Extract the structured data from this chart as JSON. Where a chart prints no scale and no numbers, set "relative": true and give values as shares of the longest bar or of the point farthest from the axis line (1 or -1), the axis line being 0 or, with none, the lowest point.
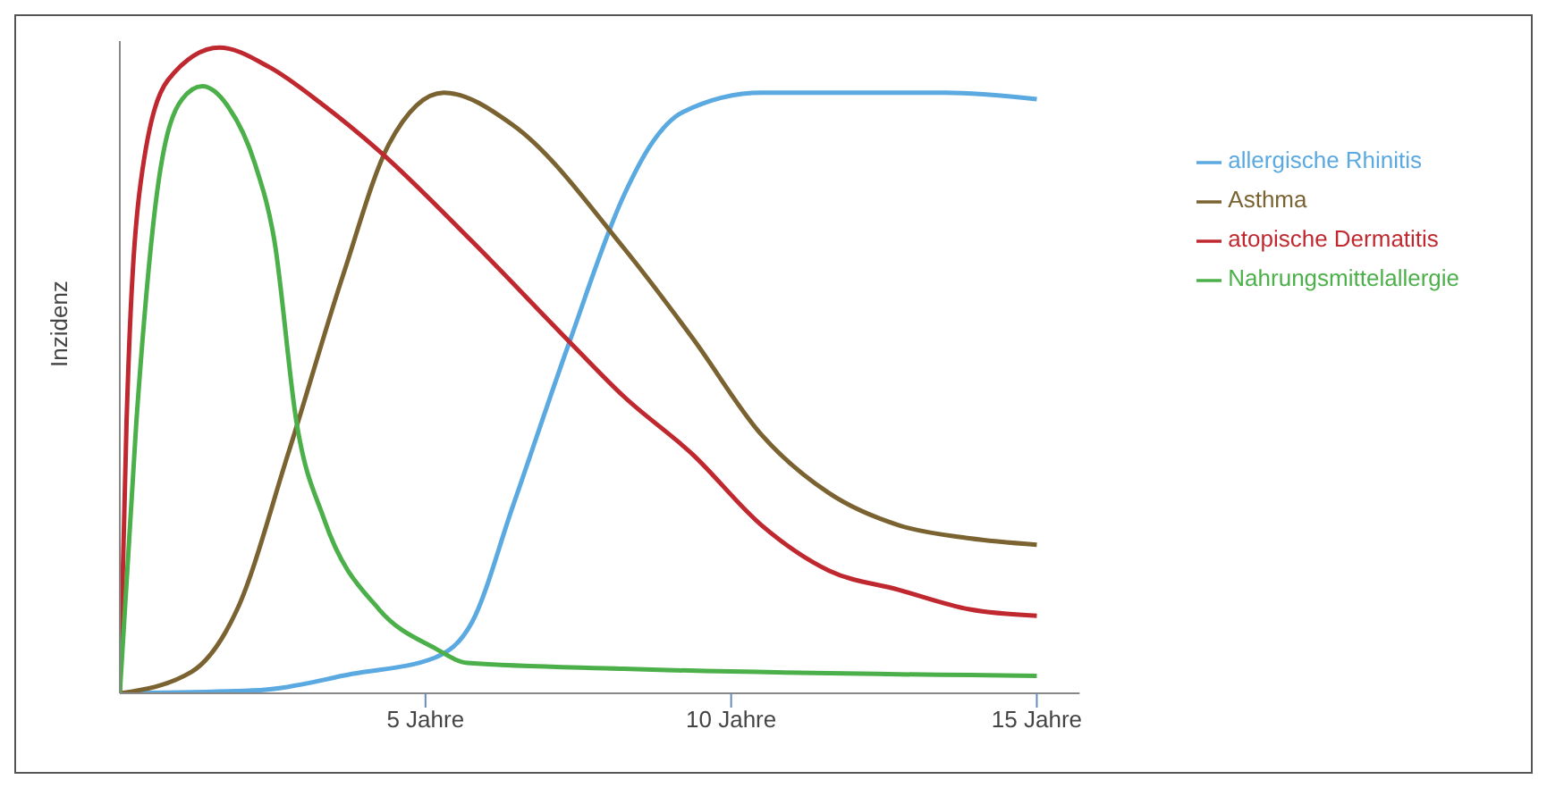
{
  "chart_data": {
    "type": "line",
    "relative": true,
    "ylabel": "Inzidenz",
    "xlim": [
      0,
      15.7
    ],
    "xticks": [
      {
        "value": 5,
        "label": "5 Jahre"
      },
      {
        "value": 10,
        "label": "10 Jahre"
      },
      {
        "value": 15,
        "label": "15 Jahre"
      }
    ],
    "legend": "top right",
    "grid": false,
    "marker": "none",
    "line_style": "solid",
    "series": [
      {
        "name": "allergische Rhinitis",
        "color": "#5aa9e0",
        "x": [
          0,
          2.3,
          3.8,
          5.15,
          5.76,
          6.43,
          7.34,
          8.24,
          8.69,
          9.21,
          10.5,
          12,
          13.5,
          15
        ],
        "values": [
          0,
          0.005,
          0.03,
          0.055,
          0.11,
          0.29,
          0.54,
          0.77,
          0.85,
          0.9,
          0.93,
          0.93,
          0.93,
          0.92
        ]
      },
      {
        "name": "Asthma",
        "color": "#7a6331",
        "x": [
          0,
          1.17,
          1.92,
          2.75,
          3.66,
          4.4,
          5.3,
          6.43,
          8.24,
          9.37,
          10.5,
          11.6,
          12.75,
          13.9,
          15
        ],
        "values": [
          0,
          0.033,
          0.13,
          0.37,
          0.65,
          0.85,
          0.93,
          0.88,
          0.69,
          0.55,
          0.4,
          0.31,
          0.26,
          0.24,
          0.23
        ]
      },
      {
        "name": "atopische Dermatitis",
        "color": "#c0282f",
        "x": [
          0,
          0.11,
          0.34,
          0.79,
          1.63,
          2.44,
          3.34,
          4.24,
          5.76,
          7.4,
          8.24,
          9.37,
          10.5,
          11.6,
          12.75,
          13.9,
          15
        ],
        "values": [
          0,
          0.42,
          0.79,
          0.95,
          1,
          0.97,
          0.91,
          0.84,
          0.7,
          0.54,
          0.46,
          0.37,
          0.26,
          0.19,
          0.16,
          0.13,
          0.12
        ]
      },
      {
        "name": "Nahrungsmittelallergie",
        "color": "#4cb04a",
        "x": [
          0,
          0.27,
          0.63,
          1.02,
          1.35,
          1.76,
          2.21,
          2.53,
          2.89,
          3.34,
          4.24,
          5.15,
          5.69,
          8.24,
          15
        ],
        "values": [
          0,
          0.42,
          0.79,
          0.92,
          0.94,
          0.91,
          0.82,
          0.7,
          0.42,
          0.27,
          0.13,
          0.07,
          0.047,
          0.038,
          0.027
        ]
      }
    ]
  }
}
